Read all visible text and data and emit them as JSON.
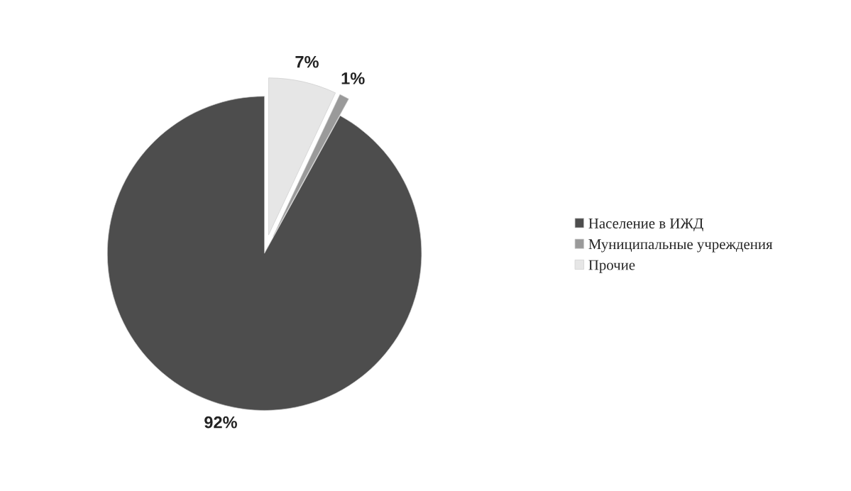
{
  "chart_data": {
    "type": "pie",
    "categories": [
      "Население в ИЖД",
      "Муниципальные учреждения",
      "Прочие"
    ],
    "values": [
      92,
      1,
      7
    ],
    "colors": [
      "#4d4d4d",
      "#9a9a9a",
      "#e6e6e6"
    ],
    "value_labels": [
      "92%",
      "1%",
      "7%"
    ],
    "legend": "right"
  }
}
